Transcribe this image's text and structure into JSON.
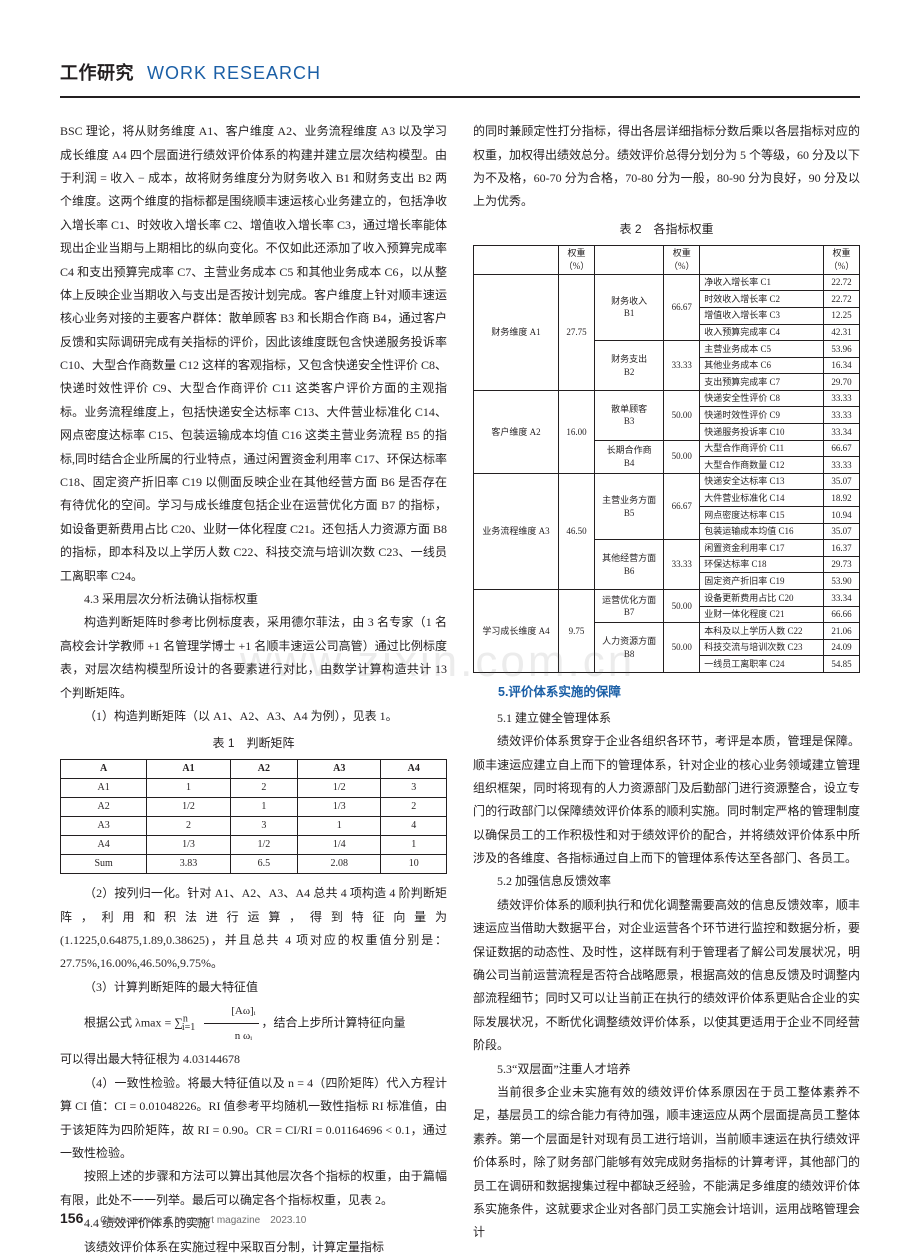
{
  "header": {
    "cn": "工作研究",
    "en": "WORK RESEARCH"
  },
  "watermark": "www.zixin.com.cn",
  "left": {
    "p1": "BSC 理论，将从财务维度 A1、客户维度 A2、业务流程维度 A3 以及学习成长维度 A4 四个层面进行绩效评价体系的构建并建立层次结构模型。由于利润 = 收入 − 成本，故将财务维度分为财务收入 B1 和财务支出 B2 两个维度。这两个维度的指标都是围绕顺丰速运核心业务建立的，包括净收入增长率 C1、时效收入增长率 C2、增值收入增长率 C3，通过增长率能体现出企业当期与上期相比的纵向变化。不仅如此还添加了收入预算完成率 C4 和支出预算完成率 C7、主营业务成本 C5 和其他业务成本 C6，以从整体上反映企业当期收入与支出是否按计划完成。客户维度上针对顺丰速运核心业务对接的主要客户群体：散单顾客 B3 和长期合作商 B4，通过客户反馈和实际调研完成有关指标的评价，因此该维度既包含快递服务投诉率 C10、大型合作商数量 C12 这样的客观指标，又包含快递安全性评价 C8、快递时效性评价 C9、大型合作商评价 C11 这类客户评价方面的主观指标。业务流程维度上，包括快递安全达标率 C13、大件营业标准化 C14、网点密度达标率 C15、包装运输成本均值 C16 这类主营业务流程 B5 的指标,同时结合企业所属的行业特点，通过闲置资金利用率 C17、环保达标率 C18、固定资产折旧率 C19 以侧面反映企业在其他经营方面 B6 是否存在有待优化的空间。学习与成长维度包括企业在运营优化方面 B7 的指标，如设备更新费用占比 C20、业财一体化程度 C21。还包括人力资源方面 B8 的指标，即本科及以上学历人数 C22、科技交流与培训次数 C23、一线员工离职率 C24。",
    "h43": "4.3 采用层次分析法确认指标权重",
    "p43": "构造判断矩阵时参考比例标度表，采用德尔菲法，由 3 名专家（1 名高校会计学教师 +1 名管理学博士 +1 名顺丰速运公司高管）通过比例标度表，对层次结构模型所设计的各要素进行对比，由数学计算构造共计 13 个判断矩阵。",
    "li1": "（1）构造判断矩阵（以 A1、A2、A3、A4 为例），见表 1。",
    "t1_caption": "表 1　判断矩阵",
    "t1": {
      "head": [
        "A",
        "A1",
        "A2",
        "A3",
        "A4"
      ],
      "rows": [
        [
          "A1",
          "1",
          "2",
          "1/2",
          "3"
        ],
        [
          "A2",
          "1/2",
          "1",
          "1/3",
          "2"
        ],
        [
          "A3",
          "2",
          "3",
          "1",
          "4"
        ],
        [
          "A4",
          "1/3",
          "1/2",
          "1/4",
          "1"
        ],
        [
          "Sum",
          "3.83",
          "6.5",
          "2.08",
          "10"
        ]
      ]
    },
    "li2": "（2）按列归一化。针对 A1、A2、A3、A4 总共 4 项构造 4 阶判断矩阵，利用和积法进行运算，得到特征向量为 (1.1225,0.64875,1.89,0.38625)，并且总共 4 项对应的权重值分别是：27.75%,16.00%,46.50%,9.75%。",
    "li3": "（3）计算判断矩阵的最大特征值",
    "formula_pre": "根据公式 λmax = ∑",
    "formula_sup": "n",
    "formula_sub": "i=1",
    "formula_num": "[Aω]ᵢ",
    "formula_den": "n ωᵢ",
    "formula_post": "，结合上步所计算特征向量",
    "formula_line2": "可以得出最大特征根为 4.03144678",
    "li4": "（4）一致性检验。将最大特征值以及 n = 4（四阶矩阵）代入方程计算 CI 值：CI = 0.01048226。RI 值参考平均随机一致性指标 RI 标准值，由于该矩阵为四阶矩阵，故 RI = 0.90。CR = CI/RI = 0.01164696 < 0.1，通过一致性检验。",
    "p_after": "按照上述的步骤和方法可以算出其他层次各个指标的权重，由于篇幅有限，此处不一一列举。最后可以确定各个指标权重，见表 2。",
    "h44": "4.4 绩效评价体系的实施",
    "p44": "该绩效评价体系在实施过程中采取百分制，计算定量指标"
  },
  "right": {
    "p_cont": "的同时兼顾定性打分指标，得出各层详细指标分数后乘以各层指标对应的权重，加权得出绩效总分。绩效评价总得分划分为 5 个等级，60 分及以下为不及格，60-70 分为合格，70-80 分为一般，80-90 分为良好，90 分及以上为优秀。",
    "t2_caption": "表 2　各指标权重",
    "t2": {
      "h_weight": "权重（%）",
      "a": [
        {
          "label": "财务维度 A1",
          "w": "27.75",
          "b": [
            {
              "label": "财务收入 B1",
              "w": "66.67",
              "c": [
                {
                  "label": "净收入增长率 C1",
                  "w": "22.72"
                },
                {
                  "label": "时效收入增长率 C2",
                  "w": "22.72"
                },
                {
                  "label": "增值收入增长率 C3",
                  "w": "12.25"
                },
                {
                  "label": "收入预算完成率 C4",
                  "w": "42.31"
                }
              ]
            },
            {
              "label": "财务支出 B2",
              "w": "33.33",
              "c": [
                {
                  "label": "主营业务成本 C5",
                  "w": "53.96"
                },
                {
                  "label": "其他业务成本 C6",
                  "w": "16.34"
                },
                {
                  "label": "支出预算完成率 C7",
                  "w": "29.70"
                }
              ]
            }
          ]
        },
        {
          "label": "客户维度 A2",
          "w": "16.00",
          "b": [
            {
              "label": "散单顾客 B3",
              "w": "50.00",
              "c": [
                {
                  "label": "快递安全性评价 C8",
                  "w": "33.33"
                },
                {
                  "label": "快递时效性评价 C9",
                  "w": "33.33"
                },
                {
                  "label": "快递服务投诉率 C10",
                  "w": "33.34"
                }
              ]
            },
            {
              "label": "长期合作商 B4",
              "w": "50.00",
              "c": [
                {
                  "label": "大型合作商评价 C11",
                  "w": "66.67"
                },
                {
                  "label": "大型合作商数量 C12",
                  "w": "33.33"
                }
              ]
            }
          ]
        },
        {
          "label": "业务流程维度 A3",
          "w": "46.50",
          "b": [
            {
              "label": "主营业务方面 B5",
              "w": "66.67",
              "c": [
                {
                  "label": "快递安全达标率 C13",
                  "w": "35.07"
                },
                {
                  "label": "大件营业标准化 C14",
                  "w": "18.92"
                },
                {
                  "label": "网点密度达标率 C15",
                  "w": "10.94"
                },
                {
                  "label": "包装运输成本均值 C16",
                  "w": "35.07"
                }
              ]
            },
            {
              "label": "其他经营方面 B6",
              "w": "33.33",
              "c": [
                {
                  "label": "闲置资金利用率 C17",
                  "w": "16.37"
                },
                {
                  "label": "环保达标率 C18",
                  "w": "29.73"
                },
                {
                  "label": "固定资产折旧率 C19",
                  "w": "53.90"
                }
              ]
            }
          ]
        },
        {
          "label": "学习成长维度 A4",
          "w": "9.75",
          "b": [
            {
              "label": "运营优化方面 B7",
              "w": "50.00",
              "c": [
                {
                  "label": "设备更新费用占比 C20",
                  "w": "33.34"
                },
                {
                  "label": "业财一体化程度 C21",
                  "w": "66.66"
                }
              ]
            },
            {
              "label": "人力资源方面 B8",
              "w": "50.00",
              "c": [
                {
                  "label": "本科及以上学历人数 C22",
                  "w": "21.06"
                },
                {
                  "label": "科技交流与培训次数 C23",
                  "w": "24.09"
                },
                {
                  "label": "一线员工离职率 C24",
                  "w": "54.85"
                }
              ]
            }
          ]
        }
      ]
    },
    "sec5": "5.评价体系实施的保障",
    "h51": "5.1 建立健全管理体系",
    "p51": "绩效评价体系贯穿于企业各组织各环节，考评是本质，管理是保障。顺丰速运应建立自上而下的管理体系，针对企业的核心业务领域建立管理组织框架，同时将现有的人力资源部门及后勤部门进行资源整合，设立专门的行政部门以保障绩效评价体系的顺利实施。同时制定严格的管理制度以确保员工的工作积极性和对于绩效评价的配合，并将绩效评价体系中所涉及的各维度、各指标通过自上而下的管理体系传达至各部门、各员工。",
    "h52": "5.2 加强信息反馈效率",
    "p52": "绩效评价体系的顺利执行和优化调整需要高效的信息反馈效率，顺丰速运应当借助大数据平台，对企业运营各个环节进行监控和数据分析，要保证数据的动态性、及时性，这样既有利于管理者了解公司发展状况，明确公司当前运营流程是否符合战略愿景，根据高效的信息反馈及时调整内部流程细节；同时又可以让当前正在执行的绩效评价体系更贴合企业的实际发展状况，不断优化调整绩效评价体系，以使其更适用于企业不同经营阶段。",
    "h53": "5.3“双层面”注重人才培养",
    "p53": "当前很多企业未实施有效的绩效评价体系原因在于员工整体素养不足，基层员工的综合能力有待加强，顺丰速运应从两个层面提高员工整体素养。第一个层面是针对现有员工进行培训，当前顺丰速运在执行绩效评价体系时，除了财务部门能够有效完成财务指标的计算考评，其他部门的员工在调研和数据搜集过程中都缺乏经验，不能满足多维度的绩效评价体系实施条件，这就要求企业对各部门员工实施会计培训，运用战略管理会计"
  },
  "footer": {
    "page": "156",
    "mag": "China storage & transport magazine　2023.10"
  }
}
